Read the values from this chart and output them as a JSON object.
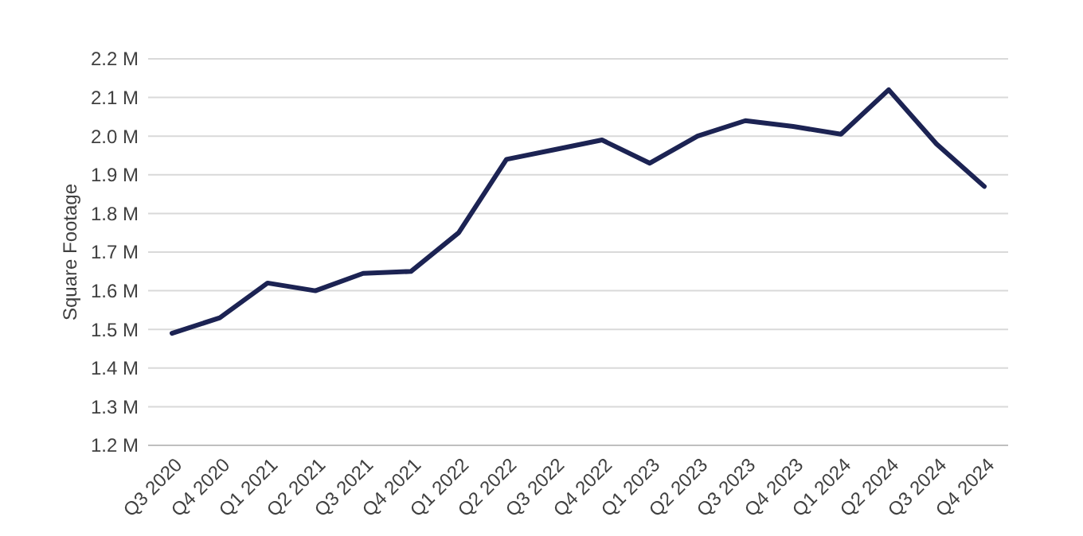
{
  "chart_data": {
    "type": "line",
    "ylabel": "Square Footage",
    "categories": [
      "Q3 2020",
      "Q4 2020",
      "Q1 2021",
      "Q2 2021",
      "Q3 2021",
      "Q4 2021",
      "Q1 2022",
      "Q2 2022",
      "Q3 2022",
      "Q4 2022",
      "Q1 2023",
      "Q2 2023",
      "Q3 2023",
      "Q4 2023",
      "Q1 2024",
      "Q2 2024",
      "Q3 2024",
      "Q4 2024"
    ],
    "series": [
      {
        "color": "#1c2353",
        "values": [
          1.49,
          1.53,
          1.62,
          1.6,
          1.645,
          1.65,
          1.75,
          1.94,
          1.965,
          1.99,
          1.93,
          2.0,
          2.04,
          2.025,
          2.005,
          2.12,
          1.98,
          1.87
        ]
      }
    ],
    "ylim": [
      1.2,
      2.2
    ],
    "yticks": [
      {
        "value": 1.2,
        "label": "1.2 M"
      },
      {
        "value": 1.3,
        "label": "1.3 M"
      },
      {
        "value": 1.4,
        "label": "1.4 M"
      },
      {
        "value": 1.5,
        "label": "1.5 M"
      },
      {
        "value": 1.6,
        "label": "1.6 M"
      },
      {
        "value": 1.7,
        "label": "1.7 M"
      },
      {
        "value": 1.8,
        "label": "1.8 M"
      },
      {
        "value": 1.9,
        "label": "1.9 M"
      },
      {
        "value": 2.0,
        "label": "2.0 M"
      },
      {
        "value": 2.1,
        "label": "2.1 M"
      },
      {
        "value": 2.2,
        "label": "2.2 M"
      }
    ],
    "grid": "y",
    "line_style": "solid"
  }
}
